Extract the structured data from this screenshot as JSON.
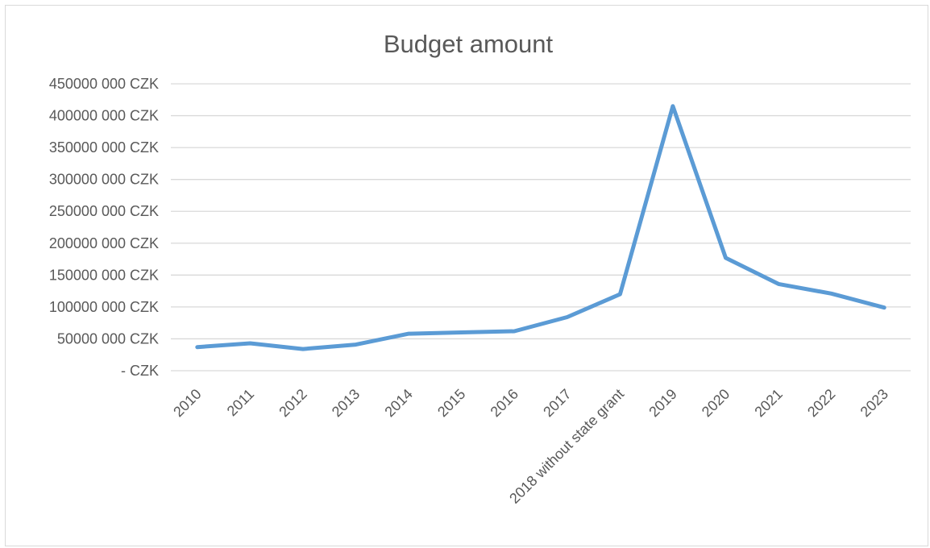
{
  "chart_data": {
    "type": "line",
    "title": "Budget amount",
    "xlabel": "",
    "ylabel": "",
    "categories": [
      "2010",
      "2011",
      "2012",
      "2013",
      "2014",
      "2015",
      "2016",
      "2017",
      "2018 without state grant",
      "2019",
      "2020",
      "2021",
      "2022",
      "2023"
    ],
    "series": [
      {
        "values": [
          37000000,
          43000000,
          34000000,
          41000000,
          58000000,
          60000000,
          62000000,
          84000000,
          120000000,
          415000000,
          177000000,
          136000000,
          121000000,
          99000000
        ],
        "color": "#5b9bd5"
      }
    ],
    "ylim": [
      0,
      450000000
    ],
    "y_ticks": [
      0,
      50000000,
      100000000,
      150000000,
      200000000,
      250000000,
      300000000,
      350000000,
      400000000,
      450000000
    ],
    "y_tick_labels": [
      "- CZK",
      "50000 000 CZK",
      "100000 000 CZK",
      "150000 000 CZK",
      "200000 000 CZK",
      "250000 000 CZK",
      "300000 000 CZK",
      "350000 000 CZK",
      "400000 000 CZK",
      "450000 000 CZK"
    ],
    "grid": true,
    "legend": "none",
    "gridline_color": "#d9d9d9",
    "text_color": "#595959"
  }
}
